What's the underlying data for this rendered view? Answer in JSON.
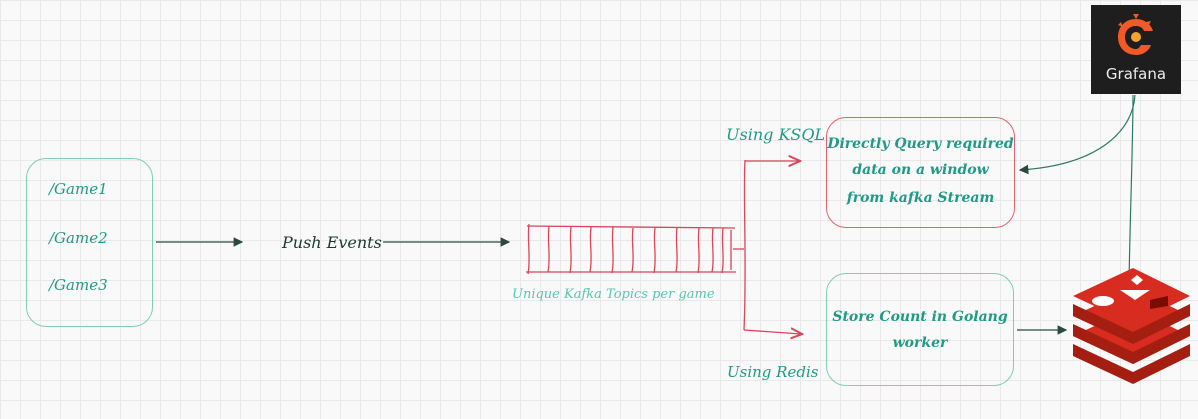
{
  "games": {
    "items": [
      "/Game1",
      "/Game2",
      "/Game3"
    ]
  },
  "push_events": "Push Events",
  "queue": {
    "label": "Unique Kafka Topics per game"
  },
  "branches": {
    "ksql_label": "Using KSQL",
    "redis_label": "Using Redis"
  },
  "query_box": {
    "lines": [
      "Directly Query required",
      "data on a window",
      "from kafka  Stream"
    ]
  },
  "store_box": {
    "lines": [
      "Store Count in Golang",
      "worker"
    ]
  },
  "grafana": {
    "label": "Grafana",
    "icon": "grafana-logo-icon"
  },
  "redis": {
    "icon": "redis-logo-icon"
  },
  "colors": {
    "teal": "#1f9a86",
    "red": "#e06270",
    "dark_arrow": "#2b4a3f",
    "redis_red": "#d32f2f"
  }
}
